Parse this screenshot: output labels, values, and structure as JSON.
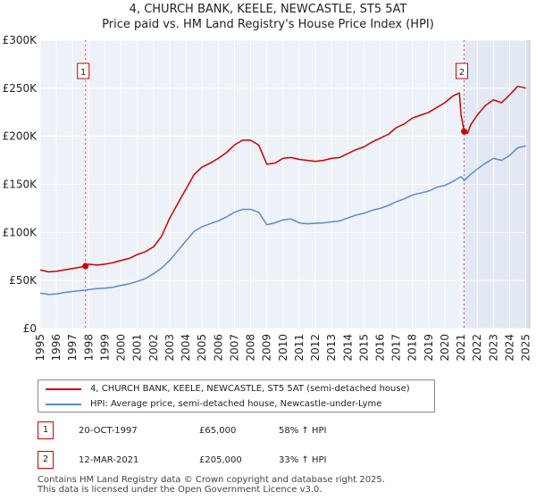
{
  "chart_data": {
    "type": "line",
    "title": "4, CHURCH BANK, KEELE, NEWCASTLE, ST5 5AT",
    "subtitle": "Price paid vs. HM Land Registry's House Price Index (HPI)",
    "xlim": [
      1995.0,
      2025.3
    ],
    "ylim": [
      0,
      300000
    ],
    "y_ticks": [
      0,
      50000,
      100000,
      150000,
      200000,
      250000,
      300000
    ],
    "y_tick_labels": [
      "£0",
      "£50K",
      "£100K",
      "£150K",
      "£200K",
      "£250K",
      "£300K"
    ],
    "x_ticks": [
      1995,
      1996,
      1997,
      1998,
      1999,
      2000,
      2001,
      2002,
      2003,
      2004,
      2005,
      2006,
      2007,
      2008,
      2009,
      2010,
      2011,
      2012,
      2013,
      2014,
      2015,
      2016,
      2017,
      2018,
      2019,
      2020,
      2021,
      2022,
      2023,
      2024,
      2025
    ],
    "x_tick_labels": [
      "1995",
      "1996",
      "1997",
      "1998",
      "1999",
      "2000",
      "2001",
      "2002",
      "2003",
      "2004",
      "2005",
      "2006",
      "2007",
      "2008",
      "2009",
      "2010",
      "2011",
      "2012",
      "2013",
      "2014",
      "2015",
      "2016",
      "2017",
      "2018",
      "2019",
      "2020",
      "2021",
      "2022",
      "2023",
      "2024",
      "2025"
    ],
    "grid": true,
    "series": [
      {
        "name": "4, CHURCH BANK, KEELE, NEWCASTLE, ST5 5AT (semi-detached house)",
        "color": "#cc0000",
        "points": [
          [
            1995.0,
            61000
          ],
          [
            1995.5,
            59000
          ],
          [
            1996.0,
            59500
          ],
          [
            1996.5,
            61000
          ],
          [
            1997.0,
            62500
          ],
          [
            1997.5,
            64000
          ],
          [
            1997.8,
            65000
          ],
          [
            1998.0,
            67000
          ],
          [
            1998.5,
            66000
          ],
          [
            1999.0,
            67000
          ],
          [
            1999.5,
            68500
          ],
          [
            2000.0,
            71000
          ],
          [
            2000.5,
            73000
          ],
          [
            2001.0,
            77000
          ],
          [
            2001.5,
            80000
          ],
          [
            2002.0,
            85000
          ],
          [
            2002.5,
            96000
          ],
          [
            2003.0,
            115000
          ],
          [
            2003.5,
            130000
          ],
          [
            2004.0,
            145000
          ],
          [
            2004.5,
            160000
          ],
          [
            2005.0,
            168000
          ],
          [
            2005.5,
            172000
          ],
          [
            2006.0,
            177000
          ],
          [
            2006.5,
            183000
          ],
          [
            2007.0,
            191000
          ],
          [
            2007.5,
            196000
          ],
          [
            2008.0,
            196000
          ],
          [
            2008.5,
            191000
          ],
          [
            2009.0,
            171000
          ],
          [
            2009.5,
            172000
          ],
          [
            2010.0,
            177000
          ],
          [
            2010.5,
            178000
          ],
          [
            2011.0,
            176000
          ],
          [
            2011.5,
            175000
          ],
          [
            2012.0,
            174000
          ],
          [
            2012.5,
            175000
          ],
          [
            2013.0,
            177000
          ],
          [
            2013.5,
            178000
          ],
          [
            2014.0,
            182000
          ],
          [
            2014.5,
            186000
          ],
          [
            2015.0,
            189000
          ],
          [
            2015.5,
            194000
          ],
          [
            2016.0,
            198000
          ],
          [
            2016.5,
            202000
          ],
          [
            2017.0,
            209000
          ],
          [
            2017.5,
            213000
          ],
          [
            2018.0,
            219000
          ],
          [
            2018.5,
            222000
          ],
          [
            2019.0,
            225000
          ],
          [
            2019.5,
            230000
          ],
          [
            2020.0,
            235000
          ],
          [
            2020.5,
            242000
          ],
          [
            2020.9,
            245000
          ],
          [
            2021.0,
            222000
          ],
          [
            2021.2,
            205000
          ],
          [
            2021.4,
            203000
          ],
          [
            2021.6,
            212000
          ],
          [
            2022.0,
            222000
          ],
          [
            2022.5,
            232000
          ],
          [
            2023.0,
            238000
          ],
          [
            2023.5,
            235000
          ],
          [
            2024.0,
            243000
          ],
          [
            2024.5,
            252000
          ],
          [
            2024.8,
            251000
          ],
          [
            2025.0,
            250000
          ]
        ]
      },
      {
        "name": "HPI: Average price, semi-detached house, Newcastle-under-Lyme",
        "color": "#5b8bc9",
        "points": [
          [
            1995.0,
            37000
          ],
          [
            1995.5,
            35500
          ],
          [
            1996.0,
            36000
          ],
          [
            1996.5,
            37500
          ],
          [
            1997.0,
            38500
          ],
          [
            1997.5,
            39500
          ],
          [
            1998.0,
            40500
          ],
          [
            1998.5,
            41500
          ],
          [
            1999.0,
            42000
          ],
          [
            1999.5,
            43000
          ],
          [
            2000.0,
            45000
          ],
          [
            2000.5,
            46500
          ],
          [
            2001.0,
            49000
          ],
          [
            2001.5,
            52000
          ],
          [
            2002.0,
            57000
          ],
          [
            2002.5,
            63000
          ],
          [
            2003.0,
            71000
          ],
          [
            2003.5,
            81000
          ],
          [
            2004.0,
            91000
          ],
          [
            2004.5,
            101000
          ],
          [
            2005.0,
            106000
          ],
          [
            2005.5,
            109000
          ],
          [
            2006.0,
            112000
          ],
          [
            2006.5,
            116000
          ],
          [
            2007.0,
            121000
          ],
          [
            2007.5,
            124000
          ],
          [
            2008.0,
            124000
          ],
          [
            2008.5,
            121000
          ],
          [
            2009.0,
            108000
          ],
          [
            2009.5,
            110000
          ],
          [
            2010.0,
            113000
          ],
          [
            2010.5,
            114000
          ],
          [
            2011.0,
            110000
          ],
          [
            2011.5,
            109000
          ],
          [
            2012.0,
            109500
          ],
          [
            2012.5,
            110000
          ],
          [
            2013.0,
            111000
          ],
          [
            2013.5,
            112000
          ],
          [
            2014.0,
            115000
          ],
          [
            2014.5,
            118000
          ],
          [
            2015.0,
            120000
          ],
          [
            2015.5,
            123000
          ],
          [
            2016.0,
            125000
          ],
          [
            2016.5,
            128000
          ],
          [
            2017.0,
            132000
          ],
          [
            2017.5,
            135000
          ],
          [
            2018.0,
            139000
          ],
          [
            2018.5,
            141000
          ],
          [
            2019.0,
            143000
          ],
          [
            2019.5,
            147000
          ],
          [
            2020.0,
            149000
          ],
          [
            2020.5,
            153000
          ],
          [
            2021.0,
            158000
          ],
          [
            2021.2,
            154000
          ],
          [
            2021.5,
            159000
          ],
          [
            2022.0,
            166000
          ],
          [
            2022.5,
            172000
          ],
          [
            2023.0,
            177000
          ],
          [
            2023.5,
            175000
          ],
          [
            2024.0,
            180000
          ],
          [
            2024.5,
            188000
          ],
          [
            2025.0,
            190000
          ]
        ]
      }
    ],
    "sales": [
      {
        "id": "1",
        "x": 1997.8,
        "y": 65000
      },
      {
        "id": "2",
        "x": 2021.19,
        "y": 205000
      }
    ]
  },
  "legend": {
    "property_label": "4, CHURCH BANK, KEELE, NEWCASTLE, ST5 5AT (semi-detached house)",
    "hpi_label": "HPI: Average price, semi-detached house, Newcastle-under-Lyme",
    "property_color": "#cc0000",
    "hpi_color": "#5b8bc9"
  },
  "sales_table": [
    {
      "id": "1",
      "date": "20-OCT-1997",
      "price": "£65,000",
      "hpi": "58% ↑ HPI"
    },
    {
      "id": "2",
      "date": "12-MAR-2021",
      "price": "£205,000",
      "hpi": "33% ↑ HPI"
    }
  ],
  "footer": {
    "line1": "Contains HM Land Registry data © Crown copyright and database right 2025.",
    "line2": "This data is licensed under the Open Government Licence v3.0."
  }
}
